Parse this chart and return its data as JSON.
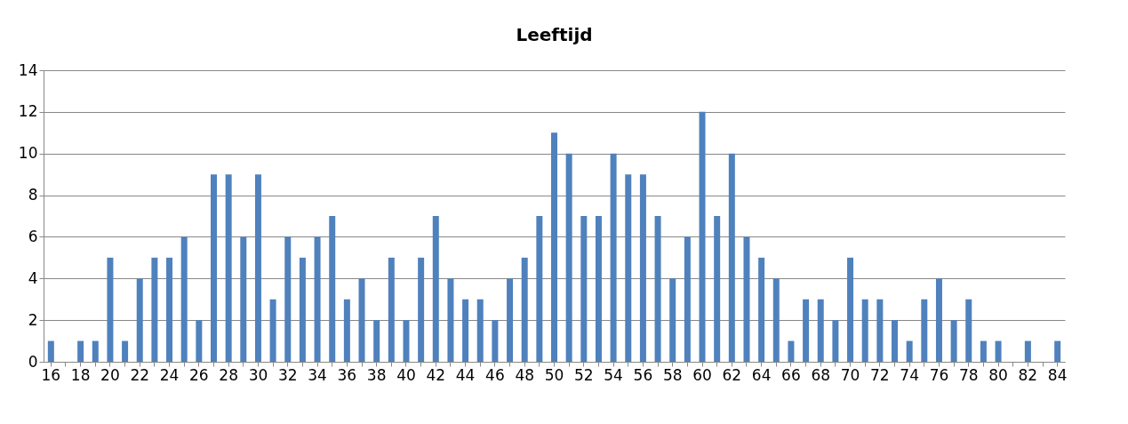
{
  "chart_data": {
    "type": "bar",
    "title": "Leeftijd",
    "categories": [
      "16",
      null,
      "18",
      null,
      "20",
      null,
      "22",
      null,
      "24",
      null,
      "26",
      null,
      "28",
      null,
      "30",
      null,
      "32",
      null,
      "34",
      null,
      "36",
      null,
      "38",
      null,
      "40",
      null,
      "42",
      null,
      "44",
      null,
      "46",
      null,
      "48",
      null,
      "50",
      null,
      "52",
      null,
      "54",
      null,
      "56",
      null,
      "58",
      null,
      "60",
      null,
      "62",
      null,
      "64",
      null,
      "66",
      null,
      "68",
      null,
      "70",
      null,
      "72",
      null,
      "74",
      null,
      "76",
      null,
      "78",
      null,
      "80",
      null,
      "82",
      null,
      "84"
    ],
    "values": [
      1,
      0,
      1,
      1,
      5,
      1,
      4,
      5,
      5,
      6,
      2,
      9,
      9,
      6,
      9,
      3,
      6,
      5,
      6,
      7,
      3,
      4,
      2,
      5,
      2,
      5,
      7,
      4,
      3,
      3,
      2,
      4,
      5,
      7,
      11,
      10,
      7,
      7,
      10,
      9,
      9,
      7,
      4,
      6,
      12,
      7,
      10,
      6,
      5,
      4,
      1,
      3,
      3,
      2,
      5,
      3,
      3,
      2,
      1,
      3,
      4,
      2,
      3,
      1,
      1,
      0,
      1,
      0,
      1
    ],
    "color": "#4f81bd",
    "ylim": [
      0,
      14
    ],
    "yticks": [
      0,
      2,
      4,
      6,
      8,
      10,
      12,
      14
    ],
    "grid": "y"
  }
}
